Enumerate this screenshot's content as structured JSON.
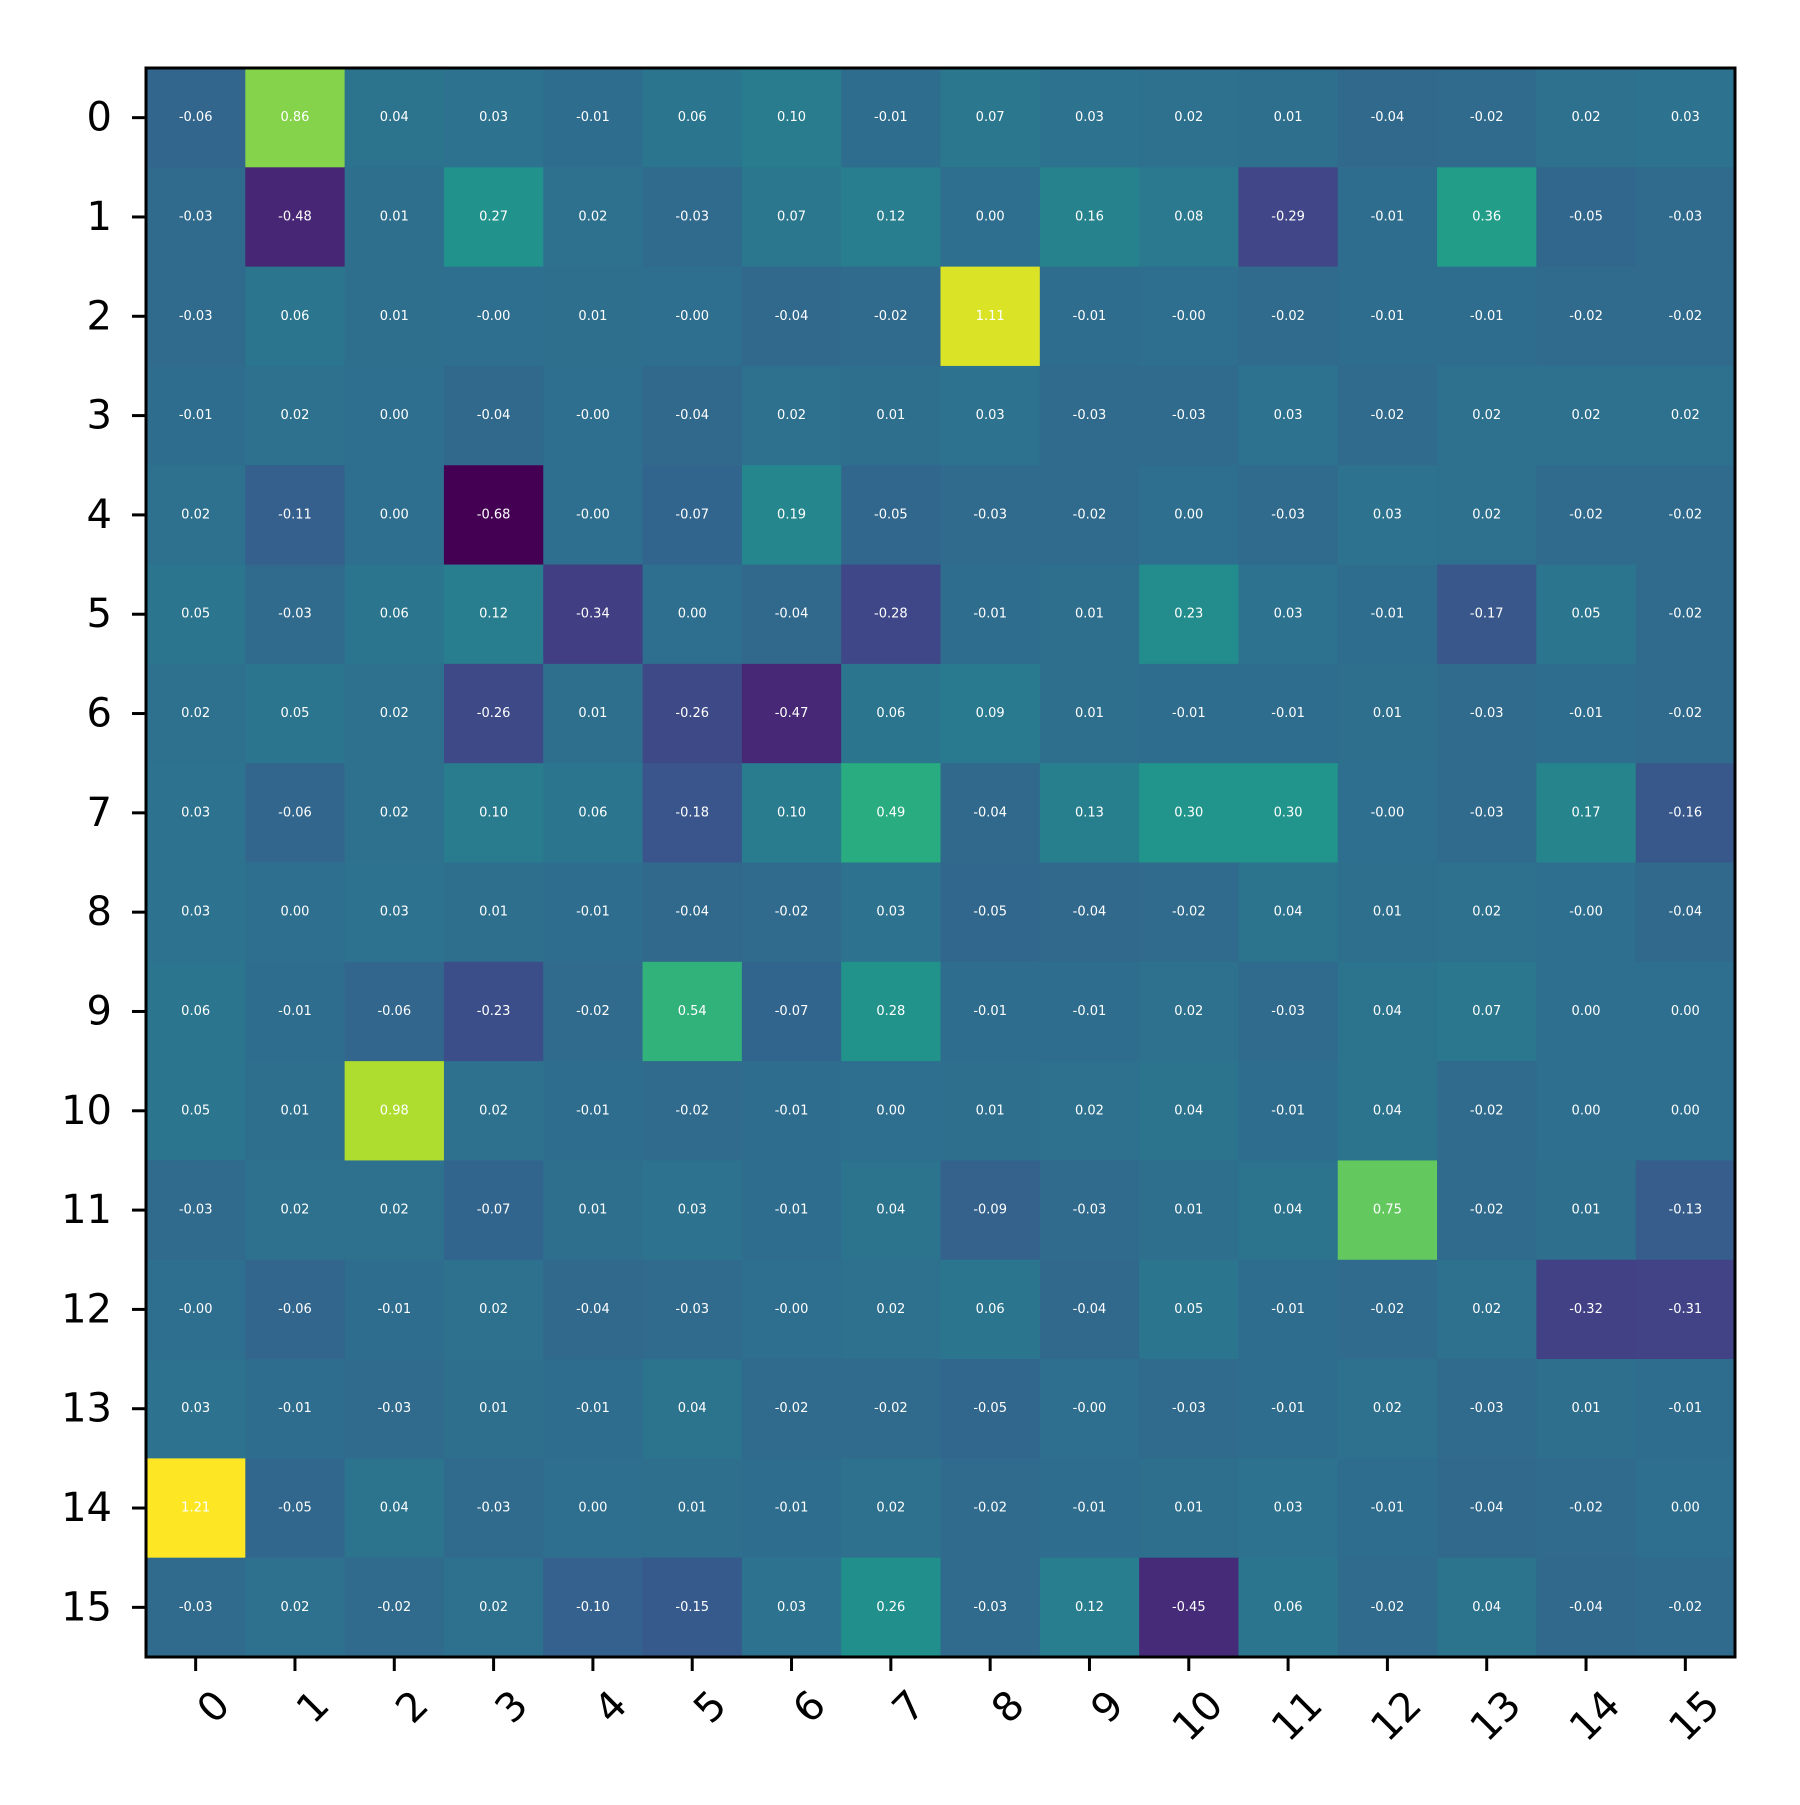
{
  "chart_data": {
    "type": "heatmap",
    "title": "",
    "xlabel": "",
    "ylabel": "",
    "colormap": "viridis",
    "value_range": [
      -0.68,
      1.21
    ],
    "x_ticks": [
      "0",
      "1",
      "2",
      "3",
      "4",
      "5",
      "6",
      "7",
      "8",
      "9",
      "10",
      "11",
      "12",
      "13",
      "14",
      "15"
    ],
    "y_ticks": [
      "0",
      "1",
      "2",
      "3",
      "4",
      "5",
      "6",
      "7",
      "8",
      "9",
      "10",
      "11",
      "12",
      "13",
      "14",
      "15"
    ],
    "values": [
      [
        -0.06,
        0.86,
        0.04,
        0.03,
        -0.01,
        0.06,
        0.1,
        -0.01,
        0.07,
        0.03,
        0.02,
        0.01,
        -0.04,
        -0.02,
        0.02,
        0.03
      ],
      [
        -0.03,
        -0.48,
        0.01,
        0.27,
        0.02,
        -0.03,
        0.07,
        0.12,
        0.0,
        0.16,
        0.08,
        -0.29,
        -0.01,
        0.36,
        -0.05,
        -0.03
      ],
      [
        -0.03,
        0.06,
        0.01,
        -0.0,
        0.01,
        -0.0,
        -0.04,
        -0.02,
        1.11,
        -0.01,
        -0.0,
        -0.02,
        -0.01,
        -0.01,
        -0.02,
        -0.02
      ],
      [
        -0.01,
        0.02,
        0.0,
        -0.04,
        -0.0,
        -0.04,
        0.02,
        0.01,
        0.03,
        -0.03,
        -0.03,
        0.03,
        -0.02,
        0.02,
        0.02,
        0.02
      ],
      [
        0.02,
        -0.11,
        0.0,
        -0.68,
        -0.0,
        -0.07,
        0.19,
        -0.05,
        -0.03,
        -0.02,
        0.0,
        -0.03,
        0.03,
        0.02,
        -0.02,
        -0.02
      ],
      [
        0.05,
        -0.03,
        0.06,
        0.12,
        -0.34,
        0.0,
        -0.04,
        -0.28,
        -0.01,
        0.01,
        0.23,
        0.03,
        -0.01,
        -0.17,
        0.05,
        -0.02
      ],
      [
        0.02,
        0.05,
        0.02,
        -0.26,
        0.01,
        -0.26,
        -0.47,
        0.06,
        0.09,
        0.01,
        -0.01,
        -0.01,
        0.01,
        -0.03,
        -0.01,
        -0.02
      ],
      [
        0.03,
        -0.06,
        0.02,
        0.1,
        0.06,
        -0.18,
        0.1,
        0.49,
        -0.04,
        0.13,
        0.3,
        0.3,
        -0.0,
        -0.03,
        0.17,
        -0.16
      ],
      [
        0.03,
        0.0,
        0.03,
        0.01,
        -0.01,
        -0.04,
        -0.02,
        0.03,
        -0.05,
        -0.04,
        -0.02,
        0.04,
        0.01,
        0.02,
        -0.0,
        -0.04
      ],
      [
        0.06,
        -0.01,
        -0.06,
        -0.23,
        -0.02,
        0.54,
        -0.07,
        0.28,
        -0.01,
        -0.01,
        0.02,
        -0.03,
        0.04,
        0.07,
        0.0,
        0.0
      ],
      [
        0.05,
        0.01,
        0.98,
        0.02,
        -0.01,
        -0.02,
        -0.01,
        0.0,
        0.01,
        0.02,
        0.04,
        -0.01,
        0.04,
        -0.02,
        0.0,
        0.0
      ],
      [
        -0.03,
        0.02,
        0.02,
        -0.07,
        0.01,
        0.03,
        -0.01,
        0.04,
        -0.09,
        -0.03,
        0.01,
        0.04,
        0.75,
        -0.02,
        0.01,
        -0.13
      ],
      [
        -0.0,
        -0.06,
        -0.01,
        0.02,
        -0.04,
        -0.03,
        -0.0,
        0.02,
        0.06,
        -0.04,
        0.05,
        -0.01,
        -0.02,
        0.02,
        -0.32,
        -0.31
      ],
      [
        0.03,
        -0.01,
        -0.03,
        0.01,
        -0.01,
        0.04,
        -0.02,
        -0.02,
        -0.05,
        -0.0,
        -0.03,
        -0.01,
        0.02,
        -0.03,
        0.01,
        -0.01
      ],
      [
        1.21,
        -0.05,
        0.04,
        -0.03,
        0.0,
        0.01,
        -0.01,
        0.02,
        -0.02,
        -0.01,
        0.01,
        0.03,
        -0.01,
        -0.04,
        -0.02,
        0.0
      ],
      [
        -0.03,
        0.02,
        -0.02,
        0.02,
        -0.1,
        -0.15,
        0.03,
        0.26,
        -0.03,
        0.12,
        -0.45,
        0.06,
        -0.02,
        0.04,
        -0.04,
        -0.02
      ]
    ],
    "annotation_color": "#ffffff",
    "grid": false,
    "legend": "none"
  }
}
